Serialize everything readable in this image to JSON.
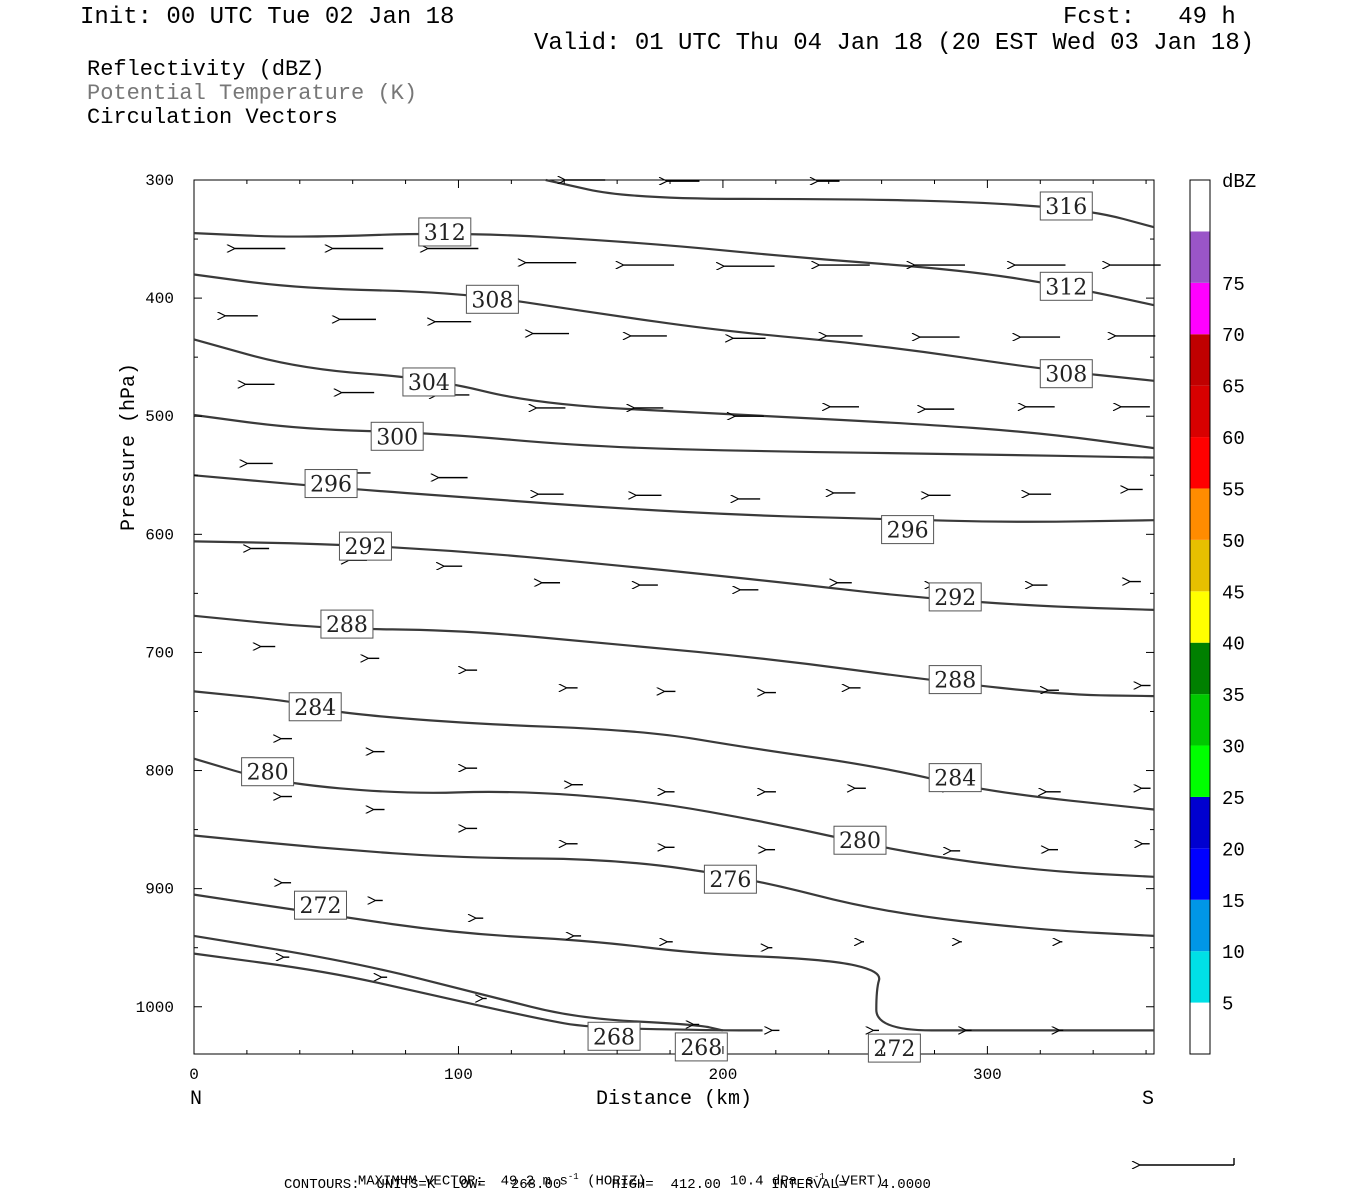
{
  "header": {
    "init": "Init: 00 UTC Tue 02 Jan 18",
    "fcst": "Fcst:   49 h",
    "valid": "Valid: 01 UTC Thu 04 Jan 18 (20 EST Wed 03 Jan 18)"
  },
  "legend": {
    "reflectivity": "Reflectivity (dBZ)",
    "theta": "Potential Temperature (K)",
    "vectors": "Circulation Vectors"
  },
  "footer": {
    "max_vector_label": "MAXIMUM VECTOR:",
    "horiz_value": "49.2 m s",
    "horiz_tag": "(HORIZ)",
    "vert_value": "10.4 dPa s",
    "vert_tag": "(VERT)",
    "exp": "-1",
    "contours": "CONTOURS:  UNITS=K  LOW=   268.00      HIGH=  412.00      INTERVAL=    4.0000"
  },
  "chart_data": {
    "type": "cross-section contour",
    "xlabel": "Distance (km)",
    "ylabel": "Pressure (hPa)",
    "x_end_labels": [
      "N",
      "S"
    ],
    "xlim": [
      0,
      363
    ],
    "ylim": [
      300,
      1040
    ],
    "xticks": [
      0,
      100,
      200,
      300
    ],
    "yticks": [
      300,
      400,
      500,
      600,
      700,
      800,
      900,
      1000
    ],
    "colorbar": {
      "title": "dBZ",
      "levels": [
        5,
        10,
        15,
        20,
        25,
        30,
        35,
        40,
        45,
        50,
        55,
        60,
        65,
        70,
        75
      ],
      "colors": [
        "#ffffff",
        "#00e0e6",
        "#0096e6",
        "#0000ff",
        "#0000d0",
        "#00ff00",
        "#00c800",
        "#008000",
        "#ffff00",
        "#e6c000",
        "#ff8c00",
        "#ff0000",
        "#d80000",
        "#c00000",
        "#ff00ff",
        "#9a55c8",
        "#ffffff"
      ]
    },
    "contour_labels": [
      {
        "value": "316",
        "x": 320,
        "p": 322
      },
      {
        "value": "312",
        "x": 85,
        "p": 344
      },
      {
        "value": "312",
        "x": 320,
        "p": 390
      },
      {
        "value": "308",
        "x": 103,
        "p": 401
      },
      {
        "value": "308",
        "x": 320,
        "p": 464
      },
      {
        "value": "304",
        "x": 79,
        "p": 471
      },
      {
        "value": "300",
        "x": 67,
        "p": 517
      },
      {
        "value": "296",
        "x": 42,
        "p": 557
      },
      {
        "value": "296",
        "x": 260,
        "p": 596
      },
      {
        "value": "292",
        "x": 55,
        "p": 610
      },
      {
        "value": "292",
        "x": 278,
        "p": 653
      },
      {
        "value": "288",
        "x": 48,
        "p": 676
      },
      {
        "value": "288",
        "x": 278,
        "p": 723
      },
      {
        "value": "284",
        "x": 36,
        "p": 746
      },
      {
        "value": "284",
        "x": 278,
        "p": 806
      },
      {
        "value": "280",
        "x": 18,
        "p": 801
      },
      {
        "value": "280",
        "x": 242,
        "p": 859
      },
      {
        "value": "276",
        "x": 193,
        "p": 892
      },
      {
        "value": "272",
        "x": 38,
        "p": 914
      },
      {
        "value": "272",
        "x": 255,
        "p": 1035
      },
      {
        "value": "268",
        "x": 149,
        "p": 1025
      },
      {
        "value": "268",
        "x": 182,
        "p": 1034
      }
    ],
    "isentropes": [
      {
        "theta": 316,
        "points": [
          [
            133,
            300
          ],
          [
            165,
            316
          ],
          [
            250,
            316
          ],
          [
            300,
            319
          ],
          [
            340,
            326
          ],
          [
            363,
            340
          ]
        ]
      },
      {
        "theta": 312,
        "points": [
          [
            0,
            345
          ],
          [
            40,
            349
          ],
          [
            100,
            344
          ],
          [
            170,
            353
          ],
          [
            230,
            366
          ],
          [
            290,
            376
          ],
          [
            330,
            390
          ],
          [
            363,
            406
          ]
        ]
      },
      {
        "theta": 308,
        "points": [
          [
            0,
            380
          ],
          [
            40,
            392
          ],
          [
            100,
            395
          ],
          [
            150,
            412
          ],
          [
            200,
            428
          ],
          [
            260,
            440
          ],
          [
            320,
            460
          ],
          [
            363,
            470
          ]
        ]
      },
      {
        "theta": 304,
        "points": [
          [
            0,
            435
          ],
          [
            40,
            460
          ],
          [
            90,
            468
          ],
          [
            130,
            490
          ],
          [
            200,
            498
          ],
          [
            270,
            506
          ],
          [
            320,
            514
          ],
          [
            363,
            527
          ]
        ]
      },
      {
        "theta": 300,
        "points": [
          [
            0,
            499
          ],
          [
            40,
            511
          ],
          [
            90,
            514
          ],
          [
            150,
            526
          ],
          [
            220,
            530
          ],
          [
            290,
            532
          ],
          [
            363,
            535
          ]
        ]
      },
      {
        "theta": 296,
        "points": [
          [
            0,
            550
          ],
          [
            50,
            560
          ],
          [
            110,
            570
          ],
          [
            160,
            578
          ],
          [
            210,
            584
          ],
          [
            260,
            587
          ],
          [
            310,
            590
          ],
          [
            363,
            588
          ]
        ]
      },
      {
        "theta": 292,
        "points": [
          [
            0,
            606
          ],
          [
            50,
            608
          ],
          [
            100,
            614
          ],
          [
            150,
            624
          ],
          [
            220,
            640
          ],
          [
            270,
            653
          ],
          [
            320,
            661
          ],
          [
            363,
            664
          ]
        ]
      },
      {
        "theta": 288,
        "points": [
          [
            0,
            669
          ],
          [
            50,
            680
          ],
          [
            100,
            681
          ],
          [
            160,
            693
          ],
          [
            220,
            706
          ],
          [
            280,
            724
          ],
          [
            330,
            736
          ],
          [
            363,
            737
          ]
        ]
      },
      {
        "theta": 284,
        "points": [
          [
            0,
            733
          ],
          [
            40,
            742
          ],
          [
            50,
            750
          ],
          [
            100,
            760
          ],
          [
            170,
            766
          ],
          [
            210,
            781
          ],
          [
            260,
            797
          ],
          [
            300,
            818
          ],
          [
            363,
            833
          ]
        ]
      },
      {
        "theta": 280,
        "points": [
          [
            0,
            790
          ],
          [
            30,
            810
          ],
          [
            80,
            820
          ],
          [
            120,
            817
          ],
          [
            170,
            825
          ],
          [
            220,
            845
          ],
          [
            270,
            870
          ],
          [
            320,
            885
          ],
          [
            363,
            890
          ]
        ]
      },
      {
        "theta": 276,
        "points": [
          [
            0,
            855
          ],
          [
            50,
            866
          ],
          [
            100,
            874
          ],
          [
            160,
            875
          ],
          [
            210,
            891
          ],
          [
            260,
            920
          ],
          [
            320,
            935
          ],
          [
            363,
            940
          ]
        ]
      },
      {
        "theta": 272,
        "points": [
          [
            0,
            905
          ],
          [
            50,
            922
          ],
          [
            100,
            938
          ],
          [
            150,
            944
          ],
          [
            190,
            955
          ],
          [
            240,
            960
          ],
          [
            260,
            970
          ],
          [
            258,
            985
          ],
          [
            258,
            1020
          ],
          [
            300,
            1020
          ],
          [
            363,
            1020
          ]
        ]
      },
      {
        "theta": 268,
        "points": [
          [
            0,
            940
          ],
          [
            60,
            962
          ],
          [
            110,
            990
          ],
          [
            145,
            1010
          ],
          [
            190,
            1015
          ],
          [
            200,
            1020
          ]
        ]
      },
      {
        "theta": 268,
        "points": [
          [
            0,
            955
          ],
          [
            50,
            970
          ],
          [
            90,
            990
          ],
          [
            130,
            1010
          ],
          [
            150,
            1018
          ],
          [
            200,
            1020
          ],
          [
            215,
            1020
          ]
        ]
      }
    ],
    "vectors": [
      {
        "x": 25,
        "p": 358,
        "u": -28,
        "w": 0
      },
      {
        "x": 62,
        "p": 358,
        "u": -28,
        "w": 0
      },
      {
        "x": 98,
        "p": 358,
        "u": -28,
        "w": 0
      },
      {
        "x": 135,
        "p": 370,
        "u": -28,
        "w": 0
      },
      {
        "x": 172,
        "p": 372,
        "u": -28,
        "w": 0
      },
      {
        "x": 210,
        "p": 373,
        "u": -28,
        "w": 0
      },
      {
        "x": 246,
        "p": 372,
        "u": -28,
        "w": 0
      },
      {
        "x": 282,
        "p": 372,
        "u": -28,
        "w": 0
      },
      {
        "x": 320,
        "p": 372,
        "u": -28,
        "w": 0
      },
      {
        "x": 356,
        "p": 372,
        "u": -28,
        "w": 0
      },
      {
        "x": 18,
        "p": 415,
        "u": -18,
        "w": 0
      },
      {
        "x": 62,
        "p": 418,
        "u": -20,
        "w": 0
      },
      {
        "x": 98,
        "p": 420,
        "u": -20,
        "w": 0
      },
      {
        "x": 135,
        "p": 430,
        "u": -20,
        "w": 0
      },
      {
        "x": 172,
        "p": 432,
        "u": -20,
        "w": 0
      },
      {
        "x": 210,
        "p": 434,
        "u": -18,
        "w": 0
      },
      {
        "x": 246,
        "p": 432,
        "u": -20,
        "w": 0
      },
      {
        "x": 282,
        "p": 433,
        "u": -22,
        "w": 0
      },
      {
        "x": 320,
        "p": 433,
        "u": -22,
        "w": 0
      },
      {
        "x": 356,
        "p": 432,
        "u": -22,
        "w": 0
      },
      {
        "x": 25,
        "p": 473,
        "u": -16,
        "w": 0
      },
      {
        "x": 62,
        "p": 480,
        "u": -18,
        "w": 0
      },
      {
        "x": 98,
        "p": 482,
        "u": -18,
        "w": 0
      },
      {
        "x": 135,
        "p": 493,
        "u": -16,
        "w": 0
      },
      {
        "x": 172,
        "p": 493,
        "u": -16,
        "w": 0
      },
      {
        "x": 210,
        "p": 500,
        "u": -16,
        "w": 0
      },
      {
        "x": 246,
        "p": 492,
        "u": -16,
        "w": 0
      },
      {
        "x": 282,
        "p": 494,
        "u": -16,
        "w": 0
      },
      {
        "x": 320,
        "p": 492,
        "u": -16,
        "w": 0
      },
      {
        "x": 356,
        "p": 492,
        "u": -16,
        "w": 0
      },
      {
        "x": 25,
        "p": 540,
        "u": -14,
        "w": 0
      },
      {
        "x": 62,
        "p": 548,
        "u": -14,
        "w": 0
      },
      {
        "x": 98,
        "p": 552,
        "u": -16,
        "w": 0
      },
      {
        "x": 135,
        "p": 566,
        "u": -14,
        "w": 0
      },
      {
        "x": 172,
        "p": 567,
        "u": -14,
        "w": 0
      },
      {
        "x": 210,
        "p": 570,
        "u": -12,
        "w": 0
      },
      {
        "x": 246,
        "p": 565,
        "u": -12,
        "w": 0
      },
      {
        "x": 282,
        "p": 567,
        "u": -12,
        "w": 0
      },
      {
        "x": 320,
        "p": 566,
        "u": -12,
        "w": 0
      },
      {
        "x": 356,
        "p": 562,
        "u": -8,
        "w": 0
      },
      {
        "x": 25,
        "p": 612,
        "u": -10,
        "w": 0
      },
      {
        "x": 62,
        "p": 622,
        "u": -10,
        "w": 0
      },
      {
        "x": 98,
        "p": 627,
        "u": -10,
        "w": 0
      },
      {
        "x": 135,
        "p": 641,
        "u": -10,
        "w": 0
      },
      {
        "x": 172,
        "p": 643,
        "u": -10,
        "w": 0
      },
      {
        "x": 210,
        "p": 647,
        "u": -10,
        "w": 0
      },
      {
        "x": 246,
        "p": 641,
        "u": -8,
        "w": 0
      },
      {
        "x": 282,
        "p": 643,
        "u": -8,
        "w": 0
      },
      {
        "x": 320,
        "p": 643,
        "u": -8,
        "w": 0
      },
      {
        "x": 356,
        "p": 640,
        "u": -6,
        "w": 0
      },
      {
        "x": 28,
        "p": 695,
        "u": -8,
        "w": 0
      },
      {
        "x": 68,
        "p": 705,
        "u": -6,
        "w": 0
      },
      {
        "x": 105,
        "p": 715,
        "u": -6,
        "w": 0
      },
      {
        "x": 143,
        "p": 730,
        "u": -6,
        "w": 0
      },
      {
        "x": 180,
        "p": 733,
        "u": -6,
        "w": 0
      },
      {
        "x": 218,
        "p": 734,
        "u": -6,
        "w": 0
      },
      {
        "x": 250,
        "p": 730,
        "u": -6,
        "w": 0
      },
      {
        "x": 288,
        "p": 732,
        "u": -6,
        "w": 0
      },
      {
        "x": 325,
        "p": 732,
        "u": -6,
        "w": 0
      },
      {
        "x": 360,
        "p": 728,
        "u": -5,
        "w": 0
      },
      {
        "x": 35,
        "p": 773,
        "u": -6,
        "w": 0
      },
      {
        "x": 70,
        "p": 784,
        "u": -6,
        "w": 0
      },
      {
        "x": 105,
        "p": 798,
        "u": -6,
        "w": 0
      },
      {
        "x": 145,
        "p": 812,
        "u": -6,
        "w": 0
      },
      {
        "x": 180,
        "p": 818,
        "u": -5,
        "w": 0
      },
      {
        "x": 218,
        "p": 818,
        "u": -6,
        "w": 0
      },
      {
        "x": 252,
        "p": 815,
        "u": -6,
        "w": 0
      },
      {
        "x": 288,
        "p": 815,
        "u": -6,
        "w": 0
      },
      {
        "x": 325,
        "p": 818,
        "u": -8,
        "w": 0
      },
      {
        "x": 360,
        "p": 815,
        "u": -5,
        "w": 0
      },
      {
        "x": 35,
        "p": 822,
        "u": -6,
        "w": 0
      },
      {
        "x": 70,
        "p": 833,
        "u": -6,
        "w": 0
      },
      {
        "x": 105,
        "p": 849,
        "u": -6,
        "w": 0
      },
      {
        "x": 143,
        "p": 862,
        "u": -6,
        "w": 0
      },
      {
        "x": 180,
        "p": 865,
        "u": -5,
        "w": 0
      },
      {
        "x": 218,
        "p": 867,
        "u": -5,
        "w": 0
      },
      {
        "x": 252,
        "p": 865,
        "u": -5,
        "w": 0
      },
      {
        "x": 288,
        "p": 868,
        "u": -5,
        "w": 0
      },
      {
        "x": 325,
        "p": 867,
        "u": -5,
        "w": 0
      },
      {
        "x": 360,
        "p": 862,
        "u": -4,
        "w": 0
      },
      {
        "x": 35,
        "p": 895,
        "u": -5,
        "w": 0
      },
      {
        "x": 70,
        "p": 910,
        "u": -4,
        "w": 0
      },
      {
        "x": 108,
        "p": 925,
        "u": -4,
        "w": 0
      },
      {
        "x": 145,
        "p": 940,
        "u": -4,
        "w": 0
      },
      {
        "x": 180,
        "p": 945,
        "u": -3,
        "w": 0
      },
      {
        "x": 218,
        "p": 950,
        "u": -2,
        "w": 0
      },
      {
        "x": 253,
        "p": 945,
        "u": -1,
        "w": 0
      },
      {
        "x": 290,
        "p": 945,
        "u": -1,
        "w": 0
      },
      {
        "x": 328,
        "p": 945,
        "u": -1,
        "w": 0
      },
      {
        "x": 35,
        "p": 958,
        "u": -3,
        "w": 0
      },
      {
        "x": 72,
        "p": 975,
        "u": -3,
        "w": 0
      },
      {
        "x": 110,
        "p": 993,
        "u": -2,
        "w": 0
      },
      {
        "x": 190,
        "p": 1015,
        "u": -3,
        "w": 0
      },
      {
        "x": 220,
        "p": 1020,
        "u": -4,
        "w": 0
      },
      {
        "x": 258,
        "p": 1020,
        "u": -3,
        "w": 0
      },
      {
        "x": 293,
        "p": 1020,
        "u": -3,
        "w": 0
      },
      {
        "x": 328,
        "p": 1020,
        "u": -2,
        "w": 0
      },
      {
        "x": 148,
        "p": 300,
        "u": -22,
        "w": 0
      },
      {
        "x": 185,
        "p": 301,
        "u": -18,
        "w": 0
      },
      {
        "x": 240,
        "p": 301,
        "u": -12,
        "w": 0
      }
    ],
    "reference_vector": {
      "u": -49.2,
      "w": 10.4
    }
  }
}
